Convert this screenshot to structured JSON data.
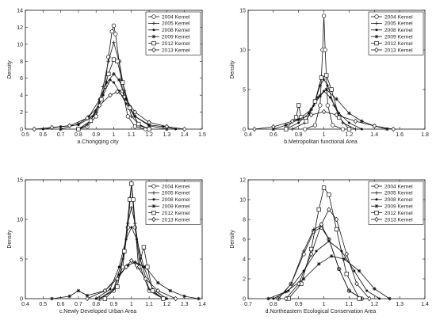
{
  "figure": {
    "background": "#ffffff",
    "line_color": "#111111",
    "legend_entries": [
      "2004 Kernel",
      "2005 Kernel",
      "2008 Kernel",
      "2009 Kernel",
      "2012 Kernel",
      "2013 Kernel"
    ]
  },
  "chart_data": [
    {
      "type": "line",
      "xlabel": "a.Chongqing city",
      "ylabel": "Density",
      "xlim": [
        0.5,
        1.5
      ],
      "ylim": [
        0,
        14
      ],
      "xticks": [
        "0.5",
        "0.6",
        "0.7",
        "0.8",
        "0.9",
        "1",
        "1.1",
        "1.2",
        "1.3",
        "1.4",
        "1.5"
      ],
      "yticks": [
        "0",
        "2",
        "4",
        "6",
        "8",
        "10",
        "12",
        "14"
      ],
      "legend_position": "top-right",
      "series": [
        {
          "name": "2004 Kernel",
          "marker": "circle",
          "x": [
            0.8,
            0.85,
            0.9,
            0.95,
            0.97,
            0.99,
            1.0,
            1.01,
            1.03,
            1.05,
            1.08,
            1.12,
            1.18
          ],
          "y": [
            0,
            0.3,
            1.5,
            5.0,
            8.5,
            11.5,
            12.2,
            11.2,
            8.0,
            4.5,
            1.5,
            0.3,
            0
          ]
        },
        {
          "name": "2005 Kernel",
          "marker": "plus",
          "x": [
            0.8,
            0.85,
            0.9,
            0.94,
            0.97,
            1.0,
            1.03,
            1.06,
            1.1,
            1.15,
            1.2
          ],
          "y": [
            0,
            0.5,
            2.0,
            5.0,
            8.0,
            10.2,
            8.0,
            4.5,
            1.5,
            0.4,
            0
          ]
        },
        {
          "name": "2008 Kernel",
          "marker": "dot",
          "x": [
            0.6,
            0.7,
            0.8,
            0.88,
            0.94,
            0.98,
            1.0,
            1.03,
            1.07,
            1.12,
            1.2,
            1.28,
            1.35
          ],
          "y": [
            0,
            0.3,
            0.5,
            1.5,
            4.0,
            5.8,
            5.5,
            4.5,
            3.0,
            1.5,
            0.5,
            0.3,
            0
          ]
        },
        {
          "name": "2009 Kernel",
          "marker": "asterisk",
          "x": [
            0.7,
            0.8,
            0.86,
            0.92,
            0.96,
            1.0,
            1.03,
            1.07,
            1.12,
            1.2,
            1.3
          ],
          "y": [
            0,
            0.6,
            1.5,
            3.5,
            5.5,
            6.5,
            5.8,
            3.5,
            1.5,
            0.4,
            0
          ]
        },
        {
          "name": "2012 Kernel",
          "marker": "square",
          "x": [
            0.8,
            0.87,
            0.93,
            0.97,
            1.0,
            1.02,
            1.05,
            1.09,
            1.14,
            1.2
          ],
          "y": [
            0,
            1.0,
            3.5,
            6.5,
            8.2,
            8.0,
            5.5,
            2.5,
            0.6,
            0
          ]
        },
        {
          "name": "2013 Kernel",
          "marker": "diamond",
          "x": [
            0.55,
            0.65,
            0.75,
            0.85,
            0.92,
            0.98,
            1.02,
            1.06,
            1.12,
            1.2,
            1.3,
            1.4
          ],
          "y": [
            0,
            0.2,
            0.4,
            1.3,
            2.8,
            4.0,
            4.4,
            3.8,
            2.0,
            0.8,
            0.3,
            0
          ]
        }
      ]
    },
    {
      "type": "line",
      "xlabel": "b.Metropolitan functional Area",
      "ylabel": "Density",
      "xlim": [
        0.4,
        1.8
      ],
      "ylim": [
        0,
        15
      ],
      "xticks": [
        "0.4",
        "0.6",
        "0.8",
        "1",
        "1.2",
        "1.4",
        "1.6",
        "1.8"
      ],
      "yticks": [
        "0",
        "5",
        "10",
        "15"
      ],
      "legend_position": "top-right",
      "series": [
        {
          "name": "2004 Kernel",
          "marker": "circle",
          "x": [
            0.85,
            0.93,
            0.97,
            0.99,
            1.0,
            1.01,
            1.03,
            1.07,
            1.15
          ],
          "y": [
            0,
            0.5,
            3.0,
            10.0,
            14.3,
            10.0,
            3.0,
            0.5,
            0
          ]
        },
        {
          "name": "2005 Kernel",
          "marker": "plus",
          "x": [
            0.75,
            0.85,
            0.92,
            0.97,
            1.0,
            1.03,
            1.08,
            1.15,
            1.25
          ],
          "y": [
            0,
            0.8,
            3.0,
            5.5,
            6.3,
            5.5,
            3.0,
            0.8,
            0
          ]
        },
        {
          "name": "2008 Kernel",
          "marker": "dot",
          "x": [
            0.7,
            0.8,
            0.88,
            0.95,
            1.0,
            1.05,
            1.12,
            1.2,
            1.3
          ],
          "y": [
            0,
            0.8,
            2.0,
            4.0,
            4.8,
            4.0,
            2.0,
            0.8,
            0
          ]
        },
        {
          "name": "2009 Kernel",
          "marker": "asterisk",
          "x": [
            0.6,
            0.7,
            0.8,
            0.9,
            0.97,
            1.02,
            1.1,
            1.2,
            1.3,
            1.4,
            1.5
          ],
          "y": [
            0,
            0.5,
            1.2,
            2.5,
            4.2,
            5.0,
            3.8,
            2.0,
            1.0,
            0.4,
            0
          ]
        },
        {
          "name": "2012 Kernel",
          "marker": "square",
          "x": [
            0.7,
            0.78,
            0.8,
            0.82,
            0.86,
            0.93,
            0.98,
            1.02,
            1.06,
            1.12,
            1.2
          ],
          "y": [
            0,
            1.5,
            3.0,
            1.5,
            1.0,
            3.5,
            6.5,
            6.8,
            5.0,
            1.5,
            0
          ]
        },
        {
          "name": "2013 Kernel",
          "marker": "diamond",
          "x": [
            0.45,
            0.6,
            0.75,
            0.9,
            1.0,
            1.1,
            1.25,
            1.4,
            1.55
          ],
          "y": [
            0,
            0.3,
            1.0,
            1.8,
            2.2,
            1.8,
            1.0,
            0.4,
            0
          ]
        }
      ]
    },
    {
      "type": "line",
      "xlabel": "c.Newly Developed Urban Area",
      "ylabel": "Density",
      "xlim": [
        0.4,
        1.4
      ],
      "ylim": [
        0,
        15
      ],
      "xticks": [
        "0.4",
        "0.5",
        "0.6",
        "0.7",
        "0.8",
        "0.9",
        "1",
        "1.1",
        "1.2",
        "1.3",
        "1.4"
      ],
      "yticks": [
        "0",
        "5",
        "10",
        "15"
      ],
      "legend_position": "top-right",
      "series": [
        {
          "name": "2004 Kernel",
          "marker": "circle",
          "x": [
            0.82,
            0.9,
            0.95,
            0.98,
            1.0,
            1.02,
            1.05,
            1.1,
            1.18
          ],
          "y": [
            0,
            1.0,
            4.0,
            9.0,
            14.5,
            9.0,
            4.0,
            1.0,
            0
          ]
        },
        {
          "name": "2005 Kernel",
          "marker": "plus",
          "x": [
            0.82,
            0.9,
            0.95,
            0.98,
            1.0,
            1.02,
            1.05,
            1.1,
            1.18
          ],
          "y": [
            0,
            1.2,
            5.0,
            9.5,
            11.5,
            9.5,
            5.0,
            1.2,
            0
          ]
        },
        {
          "name": "2008 Kernel",
          "marker": "dot",
          "x": [
            0.8,
            0.88,
            0.93,
            0.97,
            1.0,
            1.03,
            1.07,
            1.12,
            1.2
          ],
          "y": [
            0,
            1.2,
            4.0,
            7.5,
            9.0,
            7.5,
            4.0,
            1.2,
            0
          ]
        },
        {
          "name": "2009 Kernel",
          "marker": "asterisk",
          "x": [
            0.55,
            0.65,
            0.7,
            0.75,
            0.85,
            0.93,
            0.98,
            1.02,
            1.08,
            1.15,
            1.22,
            1.3,
            1.38
          ],
          "y": [
            0,
            0.3,
            1.0,
            0.4,
            1.0,
            3.0,
            4.2,
            4.6,
            4.0,
            2.0,
            1.0,
            0.3,
            0
          ]
        },
        {
          "name": "2012 Kernel",
          "marker": "square",
          "x": [
            0.85,
            0.92,
            0.96,
            0.99,
            1.0,
            1.01,
            1.04,
            1.07,
            1.09,
            1.12,
            1.18
          ],
          "y": [
            0,
            1.5,
            6.0,
            12.5,
            14.5,
            12.5,
            4.0,
            6.5,
            4.0,
            1.0,
            0
          ]
        },
        {
          "name": "2013 Kernel",
          "marker": "diamond",
          "x": [
            0.75,
            0.85,
            0.92,
            0.97,
            1.0,
            1.03,
            1.08,
            1.15,
            1.25
          ],
          "y": [
            0,
            1.0,
            2.5,
            4.0,
            4.8,
            4.2,
            2.5,
            1.0,
            0
          ]
        }
      ]
    },
    {
      "type": "line",
      "xlabel": "d.Northeastern Ecological Conservation Area",
      "ylabel": "Density",
      "xlim": [
        0.7,
        1.4
      ],
      "ylim": [
        0,
        12
      ],
      "xticks": [
        "0.7",
        "0.8",
        "0.9",
        "1",
        "1.1",
        "1.2",
        "1.3",
        "1.4"
      ],
      "yticks": [
        "0",
        "2",
        "4",
        "6",
        "8",
        "10",
        "12"
      ],
      "legend_position": "top-right",
      "series": [
        {
          "name": "2004 Kernel",
          "marker": "circle",
          "x": [
            0.82,
            0.87,
            0.92,
            0.96,
            0.99,
            1.02,
            1.06,
            1.1,
            1.15
          ],
          "y": [
            0,
            1.5,
            4.5,
            6.8,
            7.2,
            6.0,
            3.0,
            0.8,
            0
          ]
        },
        {
          "name": "2005 Kernel",
          "marker": "plus",
          "x": [
            0.82,
            0.87,
            0.92,
            0.96,
            0.99,
            1.02,
            1.06,
            1.1,
            1.15
          ],
          "y": [
            0,
            1.5,
            4.8,
            7.0,
            7.4,
            6.0,
            3.0,
            0.8,
            0
          ]
        },
        {
          "name": "2008 Kernel",
          "marker": "dot",
          "x": [
            0.8,
            0.86,
            0.92,
            0.97,
            1.02,
            1.07,
            1.12,
            1.17,
            1.22
          ],
          "y": [
            0,
            0.8,
            2.8,
            4.8,
            5.8,
            4.8,
            2.8,
            0.8,
            0
          ]
        },
        {
          "name": "2009 Kernel",
          "marker": "asterisk",
          "x": [
            0.78,
            0.85,
            0.92,
            0.98,
            1.03,
            1.08,
            1.14,
            1.2,
            1.26
          ],
          "y": [
            0,
            0.7,
            2.0,
            3.5,
            4.3,
            4.0,
            2.8,
            1.0,
            0
          ]
        },
        {
          "name": "2012 Kernel",
          "marker": "square",
          "x": [
            0.86,
            0.91,
            0.95,
            0.98,
            1.0,
            1.02,
            1.05,
            1.09,
            1.14
          ],
          "y": [
            0,
            1.5,
            5.0,
            9.0,
            11.2,
            10.5,
            7.0,
            2.5,
            0
          ]
        },
        {
          "name": "2013 Kernel",
          "marker": "diamond",
          "x": [
            0.85,
            0.9,
            0.95,
            0.99,
            1.02,
            1.05,
            1.09,
            1.13,
            1.18
          ],
          "y": [
            0,
            1.5,
            4.5,
            7.5,
            9.0,
            8.0,
            4.5,
            1.5,
            0
          ]
        }
      ]
    }
  ]
}
